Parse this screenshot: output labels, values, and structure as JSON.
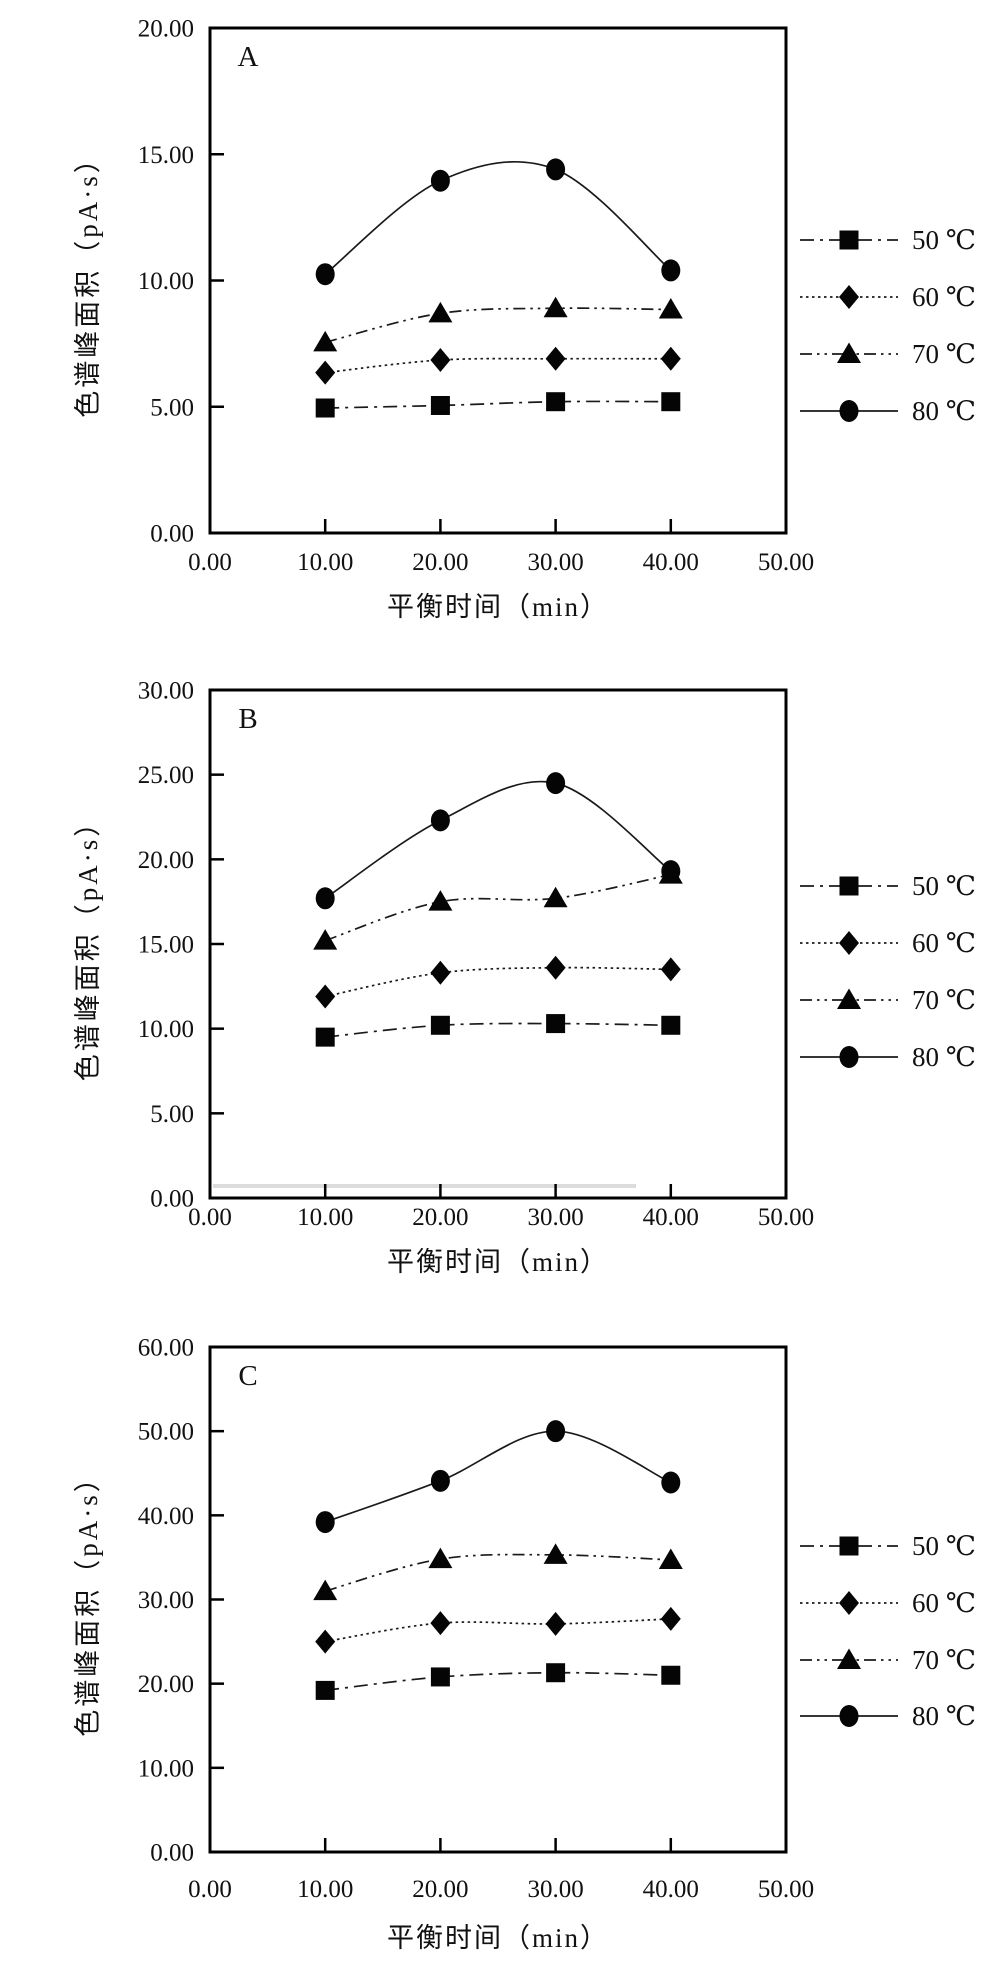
{
  "figure": {
    "background": "#ffffff",
    "line_color": "#1a1a1a",
    "marker_color": "#050505",
    "x_axis_title": "平衡时间（min）",
    "y_axis_title": "色谱峰面积（pA·s）",
    "legend_labels": [
      "50 ℃",
      "60 ℃",
      "70 ℃",
      "80 ℃"
    ]
  },
  "chart_data": [
    {
      "type": "line",
      "panel_label": "A",
      "xlabel": "平衡时间（min）",
      "ylabel": "色谱峰面积（pA·s）",
      "x": [
        10,
        20,
        30,
        40
      ],
      "xlim": [
        0,
        50
      ],
      "ylim": [
        0,
        20
      ],
      "x_ticks": [
        0,
        10,
        20,
        30,
        40,
        50
      ],
      "x_tick_labels": [
        "0.00",
        "10.00",
        "20.00",
        "30.00",
        "40.00",
        "50.00"
      ],
      "y_ticks": [
        0,
        5,
        10,
        15,
        20
      ],
      "y_tick_labels": [
        "0.00",
        "5.00",
        "10.00",
        "15.00",
        "20.00"
      ],
      "grid": false,
      "legend_position": "right",
      "series": [
        {
          "name": "50 ℃",
          "marker": "square",
          "line_style": "dash-dot",
          "values": [
            4.95,
            5.05,
            5.2,
            5.2
          ]
        },
        {
          "name": "60 ℃",
          "marker": "diamond",
          "line_style": "dotted",
          "values": [
            6.35,
            6.85,
            6.9,
            6.9
          ]
        },
        {
          "name": "70 ℃",
          "marker": "triangle",
          "line_style": "dash-dot-dot",
          "values": [
            7.55,
            8.7,
            8.9,
            8.85
          ]
        },
        {
          "name": "80 ℃",
          "marker": "circle",
          "line_style": "solid",
          "values": [
            10.25,
            13.95,
            14.4,
            10.4
          ]
        }
      ]
    },
    {
      "type": "line",
      "panel_label": "B",
      "xlabel": "平衡时间（min）",
      "ylabel": "色谱峰面积（pA·s）",
      "x": [
        10,
        20,
        30,
        40
      ],
      "xlim": [
        0,
        50
      ],
      "ylim": [
        0,
        30
      ],
      "x_ticks": [
        0,
        10,
        20,
        30,
        40,
        50
      ],
      "x_tick_labels": [
        "0.00",
        "10.00",
        "20.00",
        "30.00",
        "40.00",
        "50.00"
      ],
      "y_ticks": [
        0,
        5,
        10,
        15,
        20,
        25,
        30
      ],
      "y_tick_labels": [
        "0.00",
        "5.00",
        "10.00",
        "15.00",
        "20.00",
        "25.00",
        "30.00"
      ],
      "grid": false,
      "legend_position": "right",
      "series": [
        {
          "name": "50 ℃",
          "marker": "square",
          "line_style": "dash-dot",
          "values": [
            9.5,
            10.2,
            10.3,
            10.2
          ]
        },
        {
          "name": "60 ℃",
          "marker": "diamond",
          "line_style": "dotted",
          "values": [
            11.9,
            13.3,
            13.6,
            13.5
          ]
        },
        {
          "name": "70 ℃",
          "marker": "triangle",
          "line_style": "dash-dot-dot",
          "values": [
            15.2,
            17.5,
            17.7,
            19.1
          ]
        },
        {
          "name": "80 ℃",
          "marker": "circle",
          "line_style": "solid",
          "values": [
            17.7,
            22.3,
            24.5,
            19.3
          ]
        }
      ]
    },
    {
      "type": "line",
      "panel_label": "C",
      "xlabel": "平衡时间（min）",
      "ylabel": "色谱峰面积（pA·s）",
      "x": [
        10,
        20,
        30,
        40
      ],
      "xlim": [
        0,
        50
      ],
      "ylim": [
        0,
        60
      ],
      "x_ticks": [
        0,
        10,
        20,
        30,
        40,
        50
      ],
      "x_tick_labels": [
        "0.00",
        "10.00",
        "20.00",
        "30.00",
        "40.00",
        "50.00"
      ],
      "y_ticks": [
        0,
        10,
        20,
        30,
        40,
        50,
        60
      ],
      "y_tick_labels": [
        "0.00",
        "10.00",
        "20.00",
        "30.00",
        "40.00",
        "50.00",
        "60.00"
      ],
      "grid": false,
      "legend_position": "right",
      "series": [
        {
          "name": "50 ℃",
          "marker": "square",
          "line_style": "dash-dot",
          "values": [
            19.2,
            20.8,
            21.3,
            21.0
          ]
        },
        {
          "name": "60 ℃",
          "marker": "diamond",
          "line_style": "dotted",
          "values": [
            25.0,
            27.2,
            27.1,
            27.7
          ]
        },
        {
          "name": "70 ℃",
          "marker": "triangle",
          "line_style": "dash-dot-dot",
          "values": [
            31.0,
            34.8,
            35.3,
            34.7
          ]
        },
        {
          "name": "80 ℃",
          "marker": "circle",
          "line_style": "solid",
          "values": [
            39.2,
            44.1,
            50.0,
            43.9
          ]
        }
      ]
    }
  ]
}
